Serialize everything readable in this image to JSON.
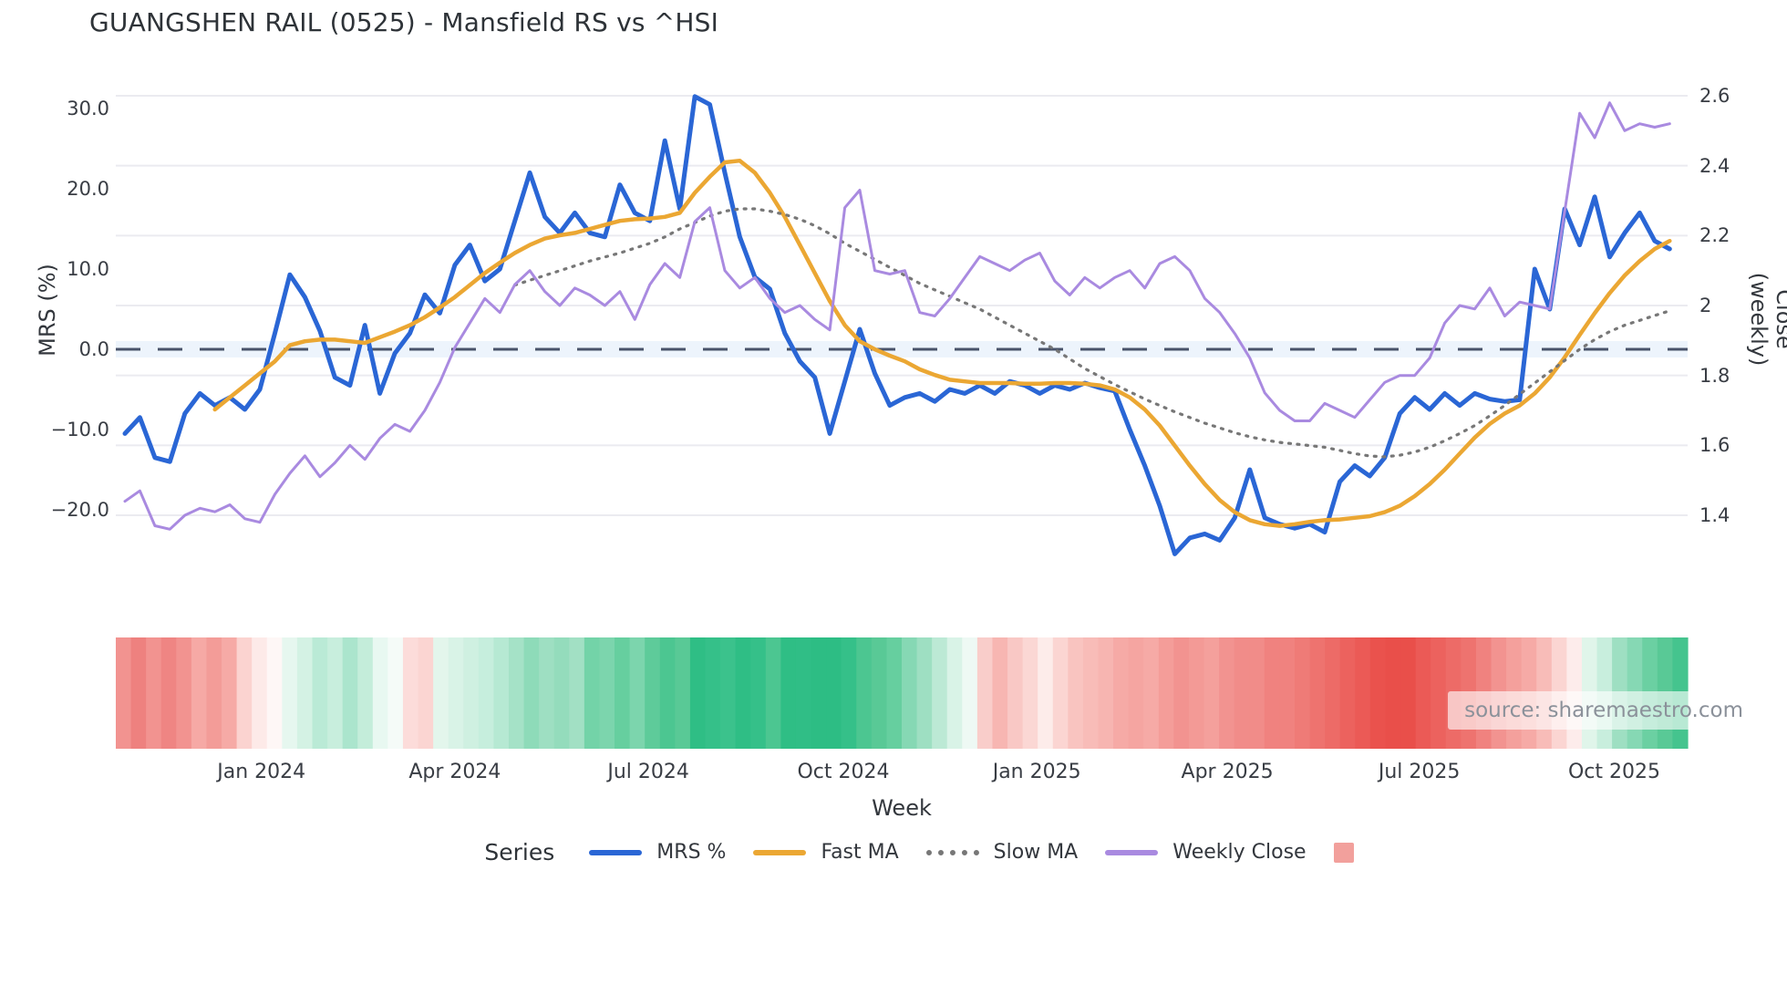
{
  "title": "GUANGSHEN RAIL (0525) - Mansfield RS vs ^HSI",
  "source": "source: sharemaestro.com",
  "axes": {
    "left": {
      "title": "MRS (%)",
      "ticks": [
        "30.0",
        "20.0",
        "10.0",
        "0.0",
        "−10.0",
        "−20.0"
      ],
      "tick_values": [
        30,
        20,
        10,
        0,
        -10,
        -20
      ]
    },
    "right": {
      "title": "Close (weekly)",
      "ticks": [
        "2.6",
        "2.4",
        "2.2",
        "2",
        "1.8",
        "1.6",
        "1.4"
      ],
      "tick_values": [
        2.6,
        2.4,
        2.2,
        2.0,
        1.8,
        1.6,
        1.4
      ]
    },
    "x": {
      "title": "Week",
      "tick_labels": [
        "Jan 2024",
        "Apr 2024",
        "Jul 2024",
        "Oct 2024",
        "Jan 2025",
        "Apr 2025",
        "Jul 2025",
        "Oct 2025"
      ],
      "tick_weeks": [
        9.1,
        22.0,
        34.9,
        47.9,
        60.8,
        73.5,
        86.3,
        99.3
      ]
    }
  },
  "legend": {
    "title": "Series",
    "items": [
      {
        "label": "MRS %",
        "color": "#2a66d5",
        "style": "solid"
      },
      {
        "label": "Fast MA",
        "color": "#ebA733",
        "style": "solid"
      },
      {
        "label": "Slow MA",
        "color": "#777777",
        "style": "dotted"
      },
      {
        "label": "Weekly Close",
        "color": "#a98ae0",
        "style": "solid"
      }
    ],
    "heatmap_swatch_color": "#f2a09c"
  },
  "chart_data": {
    "type": "line",
    "title": "GUANGSHEN RAIL (0525) - Mansfield RS vs ^HSI",
    "xlabel": "Week",
    "ylabel_left": "MRS (%)",
    "ylabel_right": "Close (weekly)",
    "x_unit": "weekly index, late Oct 2023 to early Nov 2025",
    "n_points": 104,
    "left_ylim": [
      -27,
      34.5
    ],
    "right_ylim": [
      1.35,
      2.66
    ],
    "grid": "horizontal, aligned to right-axis ticks",
    "zero_line": {
      "value": 0,
      "axis": "left",
      "style": "dashed",
      "band_color": "#cfe3f7"
    },
    "series": [
      {
        "name": "MRS %",
        "axis": "left",
        "color": "#2a66d5",
        "style": "solid",
        "width": 5,
        "values": [
          -10.5,
          -8.5,
          -13.5,
          -14,
          -8,
          -5.5,
          -7,
          -6,
          -7.5,
          -5,
          2,
          9.3,
          6.5,
          2.3,
          -3.5,
          -4.5,
          3,
          -5.5,
          -0.5,
          2,
          6.8,
          4.5,
          10.5,
          13,
          8.5,
          10,
          16,
          22,
          16.5,
          14.5,
          17,
          14.5,
          14,
          20.5,
          17,
          16,
          26,
          17.5,
          31.5,
          30.5,
          22,
          14,
          9,
          7.5,
          2,
          -1.5,
          -3.5,
          -10.5,
          -4,
          2.5,
          -3,
          -7,
          -6,
          -5.5,
          -6.5,
          -5,
          -5.5,
          -4.5,
          -5.5,
          -4,
          -4.5,
          -5.5,
          -4.5,
          -5,
          -4.2,
          -4.8,
          -5.2,
          -10,
          -14.5,
          -19.5,
          -25.5,
          -23.5,
          -23,
          -23.8,
          -21,
          -15,
          -21,
          -21.8,
          -22.3,
          -21.8,
          -22.8,
          -16.5,
          -14.5,
          -15.8,
          -13.5,
          -8,
          -6,
          -7.5,
          -5.5,
          -7,
          -5.5,
          -6.2,
          -6.5,
          -6.3,
          10,
          5,
          17.5,
          13,
          19,
          11.5,
          14.5,
          17,
          13.5,
          12.5
        ]
      },
      {
        "name": "Fast MA",
        "axis": "left",
        "color": "#ebA733",
        "style": "solid",
        "width": 4.5,
        "values": [
          null,
          null,
          null,
          null,
          null,
          null,
          -7.5,
          -6,
          -4.5,
          -3,
          -1.5,
          0.5,
          1,
          1.2,
          1.2,
          1,
          0.8,
          1.5,
          2.2,
          3,
          4,
          5.2,
          6.5,
          8,
          9.5,
          10.8,
          12,
          13,
          13.8,
          14.2,
          14.5,
          15,
          15.5,
          16,
          16.2,
          16.3,
          16.5,
          17,
          19.5,
          21.5,
          23.3,
          23.5,
          22,
          19.5,
          16.5,
          13,
          9.5,
          6,
          3,
          1,
          0,
          -0.8,
          -1.5,
          -2.5,
          -3.2,
          -3.8,
          -4,
          -4.2,
          -4.2,
          -4.2,
          -4.3,
          -4.3,
          -4.2,
          -4.2,
          -4.3,
          -4.5,
          -5,
          -6,
          -7.5,
          -9.5,
          -12,
          -14.5,
          -16.8,
          -18.8,
          -20.3,
          -21.3,
          -21.8,
          -22,
          -21.8,
          -21.5,
          -21.3,
          -21.2,
          -21,
          -20.8,
          -20.3,
          -19.5,
          -18.3,
          -16.8,
          -15,
          -13,
          -11,
          -9.3,
          -8,
          -7,
          -5.5,
          -3.5,
          -1,
          1.8,
          4.5,
          7,
          9.2,
          11,
          12.5,
          13.5
        ]
      },
      {
        "name": "Slow MA",
        "axis": "left",
        "color": "#777777",
        "style": "dotted",
        "width": 3.2,
        "values": [
          null,
          null,
          null,
          null,
          null,
          null,
          null,
          null,
          null,
          null,
          null,
          null,
          null,
          null,
          null,
          null,
          null,
          null,
          null,
          null,
          null,
          null,
          null,
          null,
          null,
          null,
          8,
          8.6,
          9.2,
          9.8,
          10.4,
          11,
          11.5,
          12,
          12.6,
          13.2,
          14,
          15,
          15.8,
          16.6,
          17.2,
          17.5,
          17.5,
          17.2,
          16.8,
          16.2,
          15.4,
          14.4,
          13.2,
          12.2,
          11.2,
          10.2,
          9.2,
          8.2,
          7.4,
          6.6,
          5.8,
          5,
          4,
          3,
          2,
          1,
          0,
          -1.2,
          -2.4,
          -3.4,
          -4.4,
          -5.3,
          -6.2,
          -7,
          -7.8,
          -8.5,
          -9.2,
          -9.8,
          -10.4,
          -10.9,
          -11.3,
          -11.6,
          -11.8,
          -12,
          -12.2,
          -12.6,
          -13,
          -13.3,
          -13.4,
          -13.2,
          -12.8,
          -12.2,
          -11.4,
          -10.5,
          -9.5,
          -8.3,
          -7,
          -5.6,
          -4.2,
          -2.8,
          -1.4,
          0,
          1.2,
          2.2,
          3,
          3.6,
          4.2,
          4.8
        ]
      },
      {
        "name": "Weekly Close",
        "axis": "right",
        "color": "#a98ae0",
        "style": "solid",
        "width": 3,
        "values": [
          1.44,
          1.47,
          1.37,
          1.36,
          1.4,
          1.42,
          1.41,
          1.43,
          1.39,
          1.38,
          1.46,
          1.52,
          1.57,
          1.51,
          1.55,
          1.6,
          1.56,
          1.62,
          1.66,
          1.64,
          1.7,
          1.78,
          1.88,
          1.95,
          2.02,
          1.98,
          2.06,
          2.1,
          2.04,
          2.0,
          2.05,
          2.03,
          2.0,
          2.04,
          1.96,
          2.06,
          2.12,
          2.08,
          2.24,
          2.28,
          2.1,
          2.05,
          2.08,
          2.02,
          1.98,
          2.0,
          1.96,
          1.93,
          2.28,
          2.33,
          2.1,
          2.09,
          2.1,
          1.98,
          1.97,
          2.02,
          2.08,
          2.14,
          2.12,
          2.1,
          2.13,
          2.15,
          2.07,
          2.03,
          2.08,
          2.05,
          2.08,
          2.1,
          2.05,
          2.12,
          2.14,
          2.1,
          2.02,
          1.98,
          1.92,
          1.85,
          1.75,
          1.7,
          1.67,
          1.67,
          1.72,
          1.7,
          1.68,
          1.73,
          1.78,
          1.8,
          1.8,
          1.85,
          1.95,
          2.0,
          1.99,
          2.05,
          1.97,
          2.01,
          2.0,
          1.99,
          2.27,
          2.55,
          2.48,
          2.58,
          2.5,
          2.52,
          2.51,
          2.52
        ]
      }
    ],
    "heatmap_strip": {
      "description": "weekly red-to-green relative-strength strip under the chart",
      "colors": [
        "#f29390",
        "#ee817f",
        "#f29390",
        "#ef8583",
        "#f29390",
        "#f6a9a5",
        "#f39c98",
        "#f6aaa6",
        "#fbd3d0",
        "#fdeae8",
        "#fef7f6",
        "#e6f7ef",
        "#d4f2e4",
        "#baead6",
        "#c8eedd",
        "#abe5cd",
        "#c4edda",
        "#e8f8f1",
        "#f5fbf8",
        "#fcdcda",
        "#fbd5d2",
        "#e3f6ec",
        "#d9f3e7",
        "#cff0e1",
        "#c6eedd",
        "#b6e9d3",
        "#a5e2c7",
        "#8edbb9",
        "#9edfc2",
        "#94dcbc",
        "#a2e0c4",
        "#73d3a8",
        "#7cd5ad",
        "#66cf9f",
        "#7cd5ad",
        "#5ecb9a",
        "#4cc691",
        "#59c996",
        "#2fbe85",
        "#35c089",
        "#3bc28c",
        "#2fbe85",
        "#35c089",
        "#4cc691",
        "#2fbe85",
        "#30be86",
        "#2dbd84",
        "#2dbd84",
        "#35c089",
        "#4cc691",
        "#59c996",
        "#66cf9f",
        "#86d8b4",
        "#9edfc2",
        "#bce9d5",
        "#d9f3e7",
        "#eef9f4",
        "#f9cdca",
        "#f7b6b2",
        "#f9c8c5",
        "#fbd7d4",
        "#fdecea",
        "#fbd5d2",
        "#f9c4c0",
        "#f8bcb8",
        "#f7b5b1",
        "#f6aaa6",
        "#f5a5a1",
        "#f6aaa6",
        "#f49d99",
        "#f29390",
        "#f39a96",
        "#f4a09c",
        "#f29390",
        "#f18c89",
        "#f18c89",
        "#f0827f",
        "#f0827f",
        "#ef7b77",
        "#ee736f",
        "#ed6b67",
        "#ec625e",
        "#eb5a56",
        "#ea524d",
        "#e94f4a",
        "#e94f4a",
        "#eb5a56",
        "#ec625e",
        "#ed6b67",
        "#ee736f",
        "#f0827f",
        "#f29390",
        "#f4a09c",
        "#f6aaa6",
        "#f8bcb8",
        "#fbd5d2",
        "#fdeceb",
        "#e0f5ea",
        "#c8eedd",
        "#9edfc2",
        "#86d8b4",
        "#6bd0a2",
        "#59c996",
        "#45c48e"
      ]
    }
  }
}
